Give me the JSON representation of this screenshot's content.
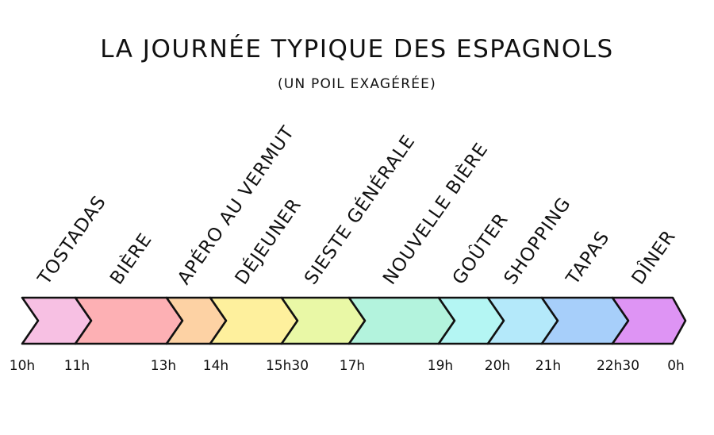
{
  "title": "LA JOURNÉE TYPIQUE DES ESPAGNOLS",
  "subtitle": "(UN POIL EXAGÉRÉE)",
  "times": [
    "10h",
    "11h",
    "13h",
    "14h",
    "15h30",
    "17h",
    "19h",
    "20h",
    "21h",
    "22h30",
    "0h"
  ],
  "segments": [
    {
      "label": "TOSTADAS",
      "color": "#f7c0e3"
    },
    {
      "label": "BIÈRE",
      "color": "#fdb0b4"
    },
    {
      "label": "APÉRO AU VERMUT",
      "color": "#fdd2a4"
    },
    {
      "label": "DÉJEUNER",
      "color": "#fef09d"
    },
    {
      "label": "SIESTE GÉNÉRALE",
      "color": "#e9f8a6"
    },
    {
      "label": "NOUVELLE BIÈRE",
      "color": "#b3f3dd"
    },
    {
      "label": "GOÛTER",
      "color": "#b4f6f3"
    },
    {
      "label": "SHOPPING",
      "color": "#b4e9fa"
    },
    {
      "label": "TAPAS",
      "color": "#a7cffa"
    },
    {
      "label": "DÎNER",
      "color": "#de94f4"
    }
  ]
}
